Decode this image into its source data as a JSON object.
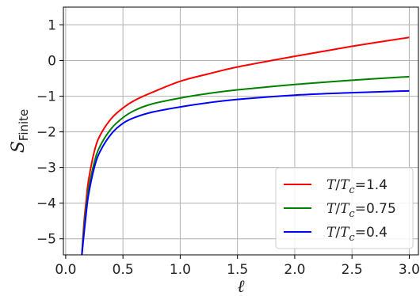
{
  "chart_data": {
    "type": "line",
    "title": "",
    "xlabel": "ℓ",
    "ylabel": {
      "main": "S",
      "subscript": "Finite"
    },
    "xlim": [
      -0.02,
      3.08
    ],
    "ylim": [
      -5.45,
      1.5
    ],
    "xticks": [
      0.0,
      0.5,
      1.0,
      1.5,
      2.0,
      2.5,
      3.0
    ],
    "xtick_labels": [
      "0.0",
      "0.5",
      "1.0",
      "1.5",
      "2.0",
      "2.5",
      "3.0"
    ],
    "yticks": [
      1,
      0,
      -1,
      -2,
      -3,
      -4,
      -5
    ],
    "ytick_labels": [
      "1",
      "0",
      "−1",
      "−2",
      "−3",
      "−4",
      "−5"
    ],
    "grid": true,
    "legend_position": "bottom-right",
    "series": [
      {
        "name": "T/Tc=1.4",
        "label_parts": {
          "var": "T",
          "slash": "/",
          "var2": "T",
          "sub": "c",
          "value": "=1.4"
        },
        "color": "#ff0000",
        "x": [
          0.14,
          0.16,
          0.18,
          0.2,
          0.25,
          0.3,
          0.4,
          0.5,
          0.6,
          0.75,
          1.0,
          1.25,
          1.5,
          2.0,
          2.5,
          3.0
        ],
        "y": [
          -5.5,
          -4.55,
          -3.9,
          -3.35,
          -2.55,
          -2.1,
          -1.62,
          -1.33,
          -1.12,
          -0.9,
          -0.58,
          -0.37,
          -0.18,
          0.12,
          0.4,
          0.65
        ]
      },
      {
        "name": "T/Tc=0.75",
        "label_parts": {
          "var": "T",
          "slash": "/",
          "var2": "T",
          "sub": "c",
          "value": "=0.75"
        },
        "color": "#008000",
        "x": [
          0.14,
          0.16,
          0.18,
          0.2,
          0.25,
          0.3,
          0.4,
          0.5,
          0.6,
          0.75,
          1.0,
          1.25,
          1.5,
          2.0,
          2.5,
          3.0
        ],
        "y": [
          -5.5,
          -4.7,
          -4.1,
          -3.6,
          -2.85,
          -2.4,
          -1.9,
          -1.6,
          -1.4,
          -1.22,
          -1.05,
          -0.92,
          -0.82,
          -0.67,
          -0.55,
          -0.45
        ]
      },
      {
        "name": "T/Tc=0.4",
        "label_parts": {
          "var": "T",
          "slash": "/",
          "var2": "T",
          "sub": "c",
          "value": "=0.4"
        },
        "color": "#0000ff",
        "x": [
          0.14,
          0.16,
          0.18,
          0.2,
          0.25,
          0.3,
          0.4,
          0.5,
          0.6,
          0.75,
          1.0,
          1.25,
          1.5,
          2.0,
          2.5,
          3.0
        ],
        "y": [
          -5.5,
          -4.85,
          -4.25,
          -3.75,
          -3.0,
          -2.55,
          -2.05,
          -1.76,
          -1.6,
          -1.45,
          -1.3,
          -1.18,
          -1.09,
          -0.97,
          -0.9,
          -0.85
        ]
      }
    ]
  }
}
